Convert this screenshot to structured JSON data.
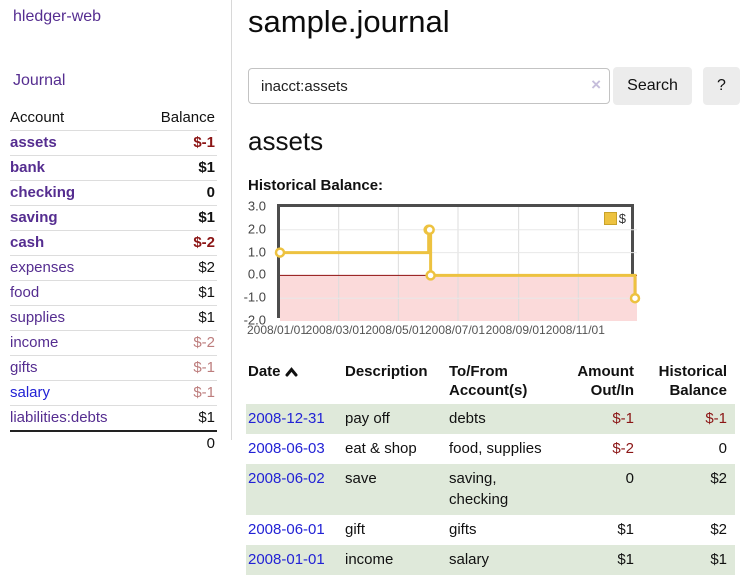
{
  "app": {
    "title": "hledger-web",
    "nav_journal_label": "Journal"
  },
  "sidebar": {
    "header": {
      "account": "Account",
      "balance": "Balance"
    },
    "accounts": [
      {
        "name": "assets",
        "depth": 1,
        "bold": true,
        "balance": "$-1",
        "neg": "strong"
      },
      {
        "name": "bank",
        "depth": 2,
        "bold": true,
        "balance": "$1",
        "neg": "none"
      },
      {
        "name": "checking",
        "depth": 3,
        "bold": true,
        "balance": "0",
        "neg": "none"
      },
      {
        "name": "saving",
        "depth": 3,
        "bold": true,
        "balance": "$1",
        "neg": "none"
      },
      {
        "name": "cash",
        "depth": 2,
        "bold": true,
        "balance": "$-2",
        "neg": "strong"
      },
      {
        "name": "expenses",
        "depth": 1,
        "bold": false,
        "balance": "$2",
        "neg": "none"
      },
      {
        "name": "food",
        "depth": 2,
        "bold": false,
        "balance": "$1",
        "neg": "none"
      },
      {
        "name": "supplies",
        "depth": 2,
        "bold": false,
        "balance": "$1",
        "neg": "none"
      },
      {
        "name": "income",
        "depth": 1,
        "bold": false,
        "balance": "$-2",
        "neg": "soft"
      },
      {
        "name": "gifts",
        "depth": 2,
        "bold": false,
        "balance": "$-1",
        "neg": "soft"
      },
      {
        "name": "salary",
        "depth": 2,
        "bold": false,
        "balance": "$-1",
        "neg": "soft",
        "link_blue": true
      },
      {
        "name": "liabilities:debts",
        "depth": 1,
        "bold": false,
        "balance": "$1",
        "neg": "none"
      }
    ],
    "total": "0"
  },
  "main": {
    "title": "sample.journal",
    "search": {
      "value": "inacct:assets",
      "clear_label": "×",
      "button_label": "Search",
      "help_label": "?"
    },
    "account_heading": "assets",
    "chart_title": "Historical Balance:"
  },
  "chart_data": {
    "type": "line",
    "title": "Historical Balance",
    "step": true,
    "ylim": [
      -2.0,
      3.0
    ],
    "yticks": [
      "3.0",
      "2.0",
      "1.0",
      "0.0",
      "-1.0",
      "-2.0"
    ],
    "ytick_values": [
      3,
      2,
      1,
      0,
      -1,
      -2
    ],
    "x_range_days": [
      0,
      365
    ],
    "xticks": [
      {
        "label": "2008/01/01",
        "day": 0
      },
      {
        "label": "2008/03/01",
        "day": 60
      },
      {
        "label": "2008/05/01",
        "day": 121
      },
      {
        "label": "2008/07/01",
        "day": 182
      },
      {
        "label": "2008/09/01",
        "day": 244
      },
      {
        "label": "2008/11/01",
        "day": 305
      }
    ],
    "series": [
      {
        "name": "$",
        "color": "#edc240",
        "points": [
          {
            "date": "2008-01-01",
            "day": 0,
            "value": 1
          },
          {
            "date": "2008-06-01",
            "day": 152,
            "value": 2
          },
          {
            "date": "2008-06-02",
            "day": 153,
            "value": 2
          },
          {
            "date": "2008-06-03",
            "day": 154,
            "value": 0
          },
          {
            "date": "2008-12-31",
            "day": 363,
            "value": -1
          }
        ]
      }
    ],
    "negative_region_color": "#fbdada",
    "zero_line_color": "#8e0f0f",
    "grid": true,
    "legend_position": "top-right",
    "legend": {
      "label": "$",
      "swatch_color": "#edc240"
    }
  },
  "register": {
    "headers": {
      "date": "Date",
      "description": "Description",
      "accounts": "To/From Account(s)",
      "amount": "Amount Out/In",
      "balance": "Historical Balance"
    },
    "rows": [
      {
        "date": "2008-12-31",
        "description": "pay off",
        "accounts": "debts",
        "amount": "$-1",
        "amount_neg": true,
        "balance": "$-1",
        "balance_neg": true
      },
      {
        "date": "2008-06-03",
        "description": "eat & shop",
        "accounts": "food, supplies",
        "amount": "$-2",
        "amount_neg": true,
        "balance": "0",
        "balance_neg": false
      },
      {
        "date": "2008-06-02",
        "description": "save",
        "accounts": "saving, checking",
        "amount": "0",
        "amount_neg": false,
        "balance": "$2",
        "balance_neg": false
      },
      {
        "date": "2008-06-01",
        "description": "gift",
        "accounts": "gifts",
        "amount": "$1",
        "amount_neg": false,
        "balance": "$2",
        "balance_neg": false
      },
      {
        "date": "2008-01-01",
        "description": "income",
        "accounts": "salary",
        "amount": "$1",
        "amount_neg": false,
        "balance": "$1",
        "balance_neg": false
      }
    ]
  }
}
